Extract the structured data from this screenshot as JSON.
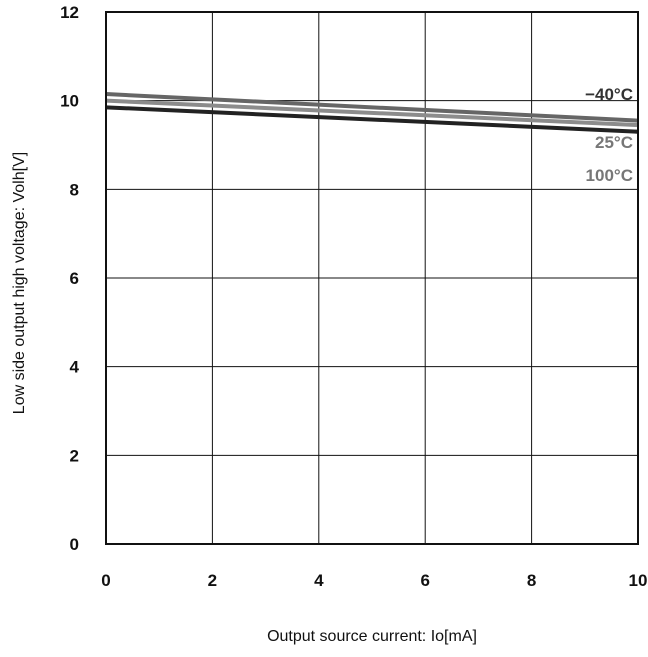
{
  "chart_data": {
    "type": "line",
    "xlabel": "Output source current: Io[mA]",
    "ylabel": "Low side output high voltage: Volh[V]",
    "xlim": [
      0,
      10
    ],
    "ylim": [
      0,
      12
    ],
    "x_ticks": [
      0,
      2,
      4,
      6,
      8,
      10
    ],
    "y_ticks": [
      0,
      2,
      4,
      6,
      8,
      10,
      12
    ],
    "x_tick_labels": [
      "0",
      "2",
      "4",
      "6",
      "8",
      "10"
    ],
    "y_tick_labels": [
      "0",
      "2",
      "4",
      "6",
      "8",
      "10",
      "12"
    ],
    "grid": true,
    "series": [
      {
        "name": "−40°C",
        "color": "#666666",
        "x": [
          0,
          10
        ],
        "y": [
          10.15,
          9.55
        ]
      },
      {
        "name": "25°C",
        "color": "#8c8c8c",
        "x": [
          0,
          10
        ],
        "y": [
          10.0,
          9.45
        ]
      },
      {
        "name": "100°C",
        "color": "#222222",
        "x": [
          0,
          10
        ],
        "y": [
          9.85,
          9.3
        ]
      }
    ],
    "label_colors": [
      "#333333",
      "#777777",
      "#777777"
    ]
  }
}
